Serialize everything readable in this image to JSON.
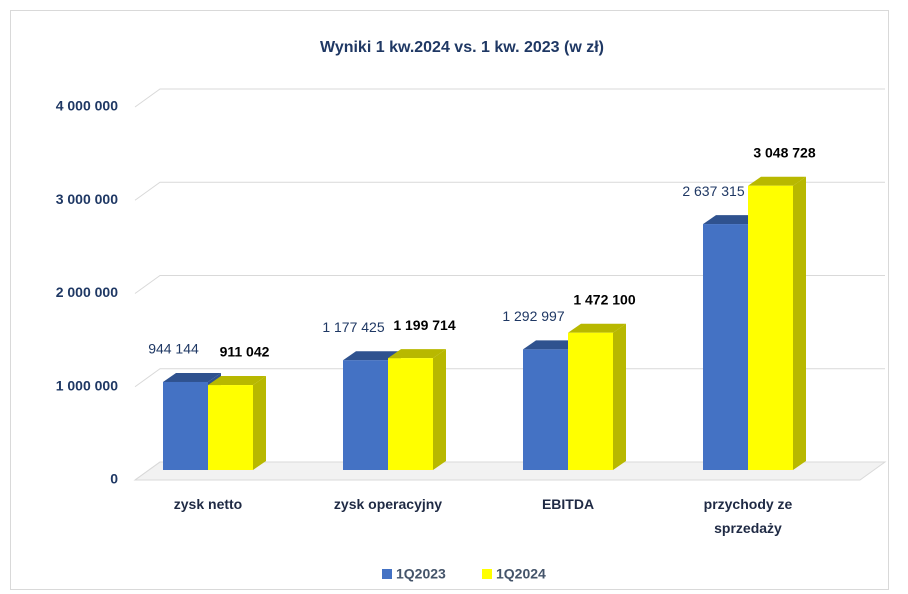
{
  "chart_data": {
    "type": "bar3d",
    "title": "Wyniki 1 kw.2024 vs. 1 kw. 2023 (w zł)",
    "categories": [
      "zysk netto",
      "zysk operacyjny",
      "EBITDA",
      "przychody ze sprzedaży"
    ],
    "series": [
      {
        "name": "1Q2023",
        "color": "#4472c4",
        "side_color": "#2f528f",
        "values": [
          944144,
          1177425,
          1292997,
          2637315
        ],
        "value_labels": [
          "944 144",
          "1 177 425",
          "1 292 997",
          "2 637 315"
        ]
      },
      {
        "name": "1Q2024",
        "color": "#ffff00",
        "side_color": "#b8b800",
        "values": [
          911042,
          1199714,
          1472100,
          3048728
        ],
        "value_labels": [
          "911 042",
          "1 199 714",
          "1 472 100",
          "3 048 728"
        ]
      }
    ],
    "ylim": [
      0,
      4000000
    ],
    "yticks": [
      0,
      {
        "value": 1000000,
        "label": "1 000 000"
      },
      {
        "value": 2000000,
        "label": "2 000 000"
      },
      {
        "value": 3000000,
        "label": "3 000 000"
      },
      {
        "value": 4000000,
        "label": "4 000 000"
      }
    ],
    "grid": true,
    "legend": "bottom"
  }
}
